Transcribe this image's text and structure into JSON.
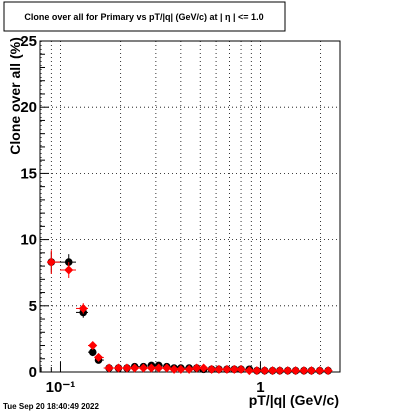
{
  "chart_data": {
    "type": "scatter",
    "title": "Clone  over all for Primary vs pT/|q| (GeV/c) at |  η  | <= 1.0",
    "xlabel": "pT/|q| (GeV/c)",
    "ylabel": "Clone  over all (%)",
    "x_scale": "log",
    "xlim": [
      0.079,
      2.5
    ],
    "ylim": [
      0,
      25
    ],
    "grid": true,
    "y_ticks": [
      0,
      5,
      10,
      15,
      20,
      25
    ],
    "y_tick_labels": [
      "0",
      "5",
      "10",
      "15",
      "20",
      "25"
    ],
    "x_major_ticks": [
      0.1,
      1
    ],
    "x_tick_labels": [
      "10⁻¹",
      "1"
    ],
    "timestamp": "Tue Sep 20 18:40:49 2022",
    "series": [
      {
        "color": "#000000",
        "marker": "circle",
        "x": [
          0.09,
          0.11,
          0.13,
          0.145,
          0.155,
          0.175,
          0.195,
          0.215,
          0.235,
          0.26,
          0.285,
          0.31,
          0.34,
          0.37,
          0.4,
          0.44,
          0.48,
          0.52,
          0.57,
          0.62,
          0.68,
          0.74,
          0.8,
          0.88,
          0.96,
          1.05,
          1.15,
          1.25,
          1.37,
          1.5,
          1.65,
          1.8,
          1.98,
          2.18
        ],
        "y": [
          8.3,
          8.3,
          4.5,
          1.5,
          0.9,
          0.3,
          0.3,
          0.3,
          0.4,
          0.4,
          0.5,
          0.5,
          0.4,
          0.3,
          0.3,
          0.3,
          0.3,
          0.2,
          0.2,
          0.2,
          0.2,
          0.2,
          0.2,
          0.2,
          0.1,
          0.1,
          0.1,
          0.1,
          0.1,
          0.1,
          0.1,
          0.1,
          0.1,
          0.1
        ],
        "y_err": [
          0.8,
          0.6,
          0.4,
          0.3,
          0.2,
          0.15,
          0.15,
          0.15,
          0.15,
          0.15,
          0.15,
          0.15,
          0.15,
          0.1,
          0.1,
          0.1,
          0.1,
          0.1,
          0.1,
          0.1,
          0.1,
          0.1,
          0.1,
          0.1,
          0.1,
          0.1,
          0.1,
          0.1,
          0.1,
          0.1,
          0.1,
          0.1,
          0.1,
          0.1
        ]
      },
      {
        "color": "#ff0000",
        "marker": "diamond",
        "x": [
          0.09,
          0.11,
          0.13,
          0.145,
          0.155,
          0.175,
          0.195,
          0.215,
          0.235,
          0.26,
          0.285,
          0.31,
          0.34,
          0.37,
          0.4,
          0.44,
          0.48,
          0.52,
          0.57,
          0.62,
          0.68,
          0.74,
          0.8,
          0.88,
          0.96,
          1.05,
          1.15,
          1.25,
          1.37,
          1.5,
          1.65,
          1.8,
          1.98,
          2.18
        ],
        "y": [
          8.3,
          7.7,
          4.8,
          2.0,
          1.1,
          0.3,
          0.3,
          0.3,
          0.3,
          0.3,
          0.3,
          0.3,
          0.3,
          0.2,
          0.2,
          0.2,
          0.3,
          0.3,
          0.2,
          0.2,
          0.2,
          0.2,
          0.2,
          0.1,
          0.1,
          0.1,
          0.1,
          0.1,
          0.1,
          0.1,
          0.1,
          0.1,
          0.1,
          0.1
        ],
        "y_err": [
          0.9,
          0.6,
          0.4,
          0.3,
          0.2,
          0.15,
          0.15,
          0.15,
          0.15,
          0.15,
          0.15,
          0.15,
          0.15,
          0.1,
          0.1,
          0.1,
          0.1,
          0.1,
          0.1,
          0.1,
          0.1,
          0.1,
          0.1,
          0.1,
          0.1,
          0.1,
          0.1,
          0.1,
          0.1,
          0.1,
          0.1,
          0.1,
          0.1,
          0.1
        ]
      }
    ]
  }
}
